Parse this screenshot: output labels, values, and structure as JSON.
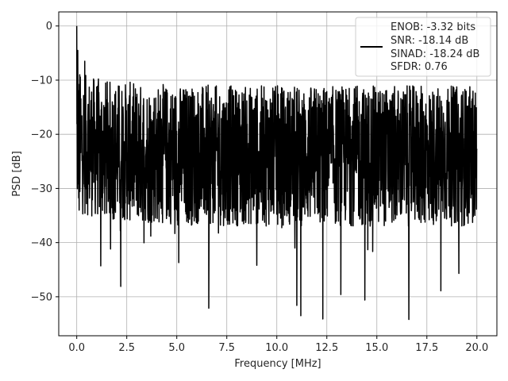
{
  "chart_data": {
    "type": "line",
    "title": "",
    "xlabel": "Frequency [MHz]",
    "ylabel": "PSD [dB]",
    "xlim": [
      -0.9,
      21.0
    ],
    "ylim": [
      -57.2,
      2.6
    ],
    "x_ticks": [
      0.0,
      2.5,
      5.0,
      7.5,
      10.0,
      12.5,
      15.0,
      17.5,
      20.0
    ],
    "x_tick_labels": [
      "0.0",
      "2.5",
      "5.0",
      "7.5",
      "10.0",
      "12.5",
      "15.0",
      "17.5",
      "20.0"
    ],
    "y_ticks": [
      0,
      -10,
      -20,
      -30,
      -40,
      -50
    ],
    "y_tick_labels": [
      "0",
      "−10",
      "−20",
      "−30",
      "−40",
      "−50"
    ],
    "grid": true,
    "legend_position": "top-right",
    "series": [
      {
        "color": "#000000",
        "x_range": [
          0.0,
          20.0
        ],
        "num_points": 2048,
        "approx_envelope": {
          "upper": -12,
          "lower": -38,
          "center": -24
        },
        "peaks": [
          {
            "x": 0.0,
            "y": 0.0
          },
          {
            "x": 0.05,
            "y": -4.5
          },
          {
            "x": 0.15,
            "y": -9.0
          },
          {
            "x": 0.4,
            "y": -6.5
          }
        ],
        "dips": [
          {
            "x": 0.12,
            "y": -34.0
          },
          {
            "x": 1.2,
            "y": -44.3
          },
          {
            "x": 2.2,
            "y": -48.1
          },
          {
            "x": 3.7,
            "y": -38.8
          },
          {
            "x": 5.1,
            "y": -43.7
          },
          {
            "x": 6.6,
            "y": -52.1
          },
          {
            "x": 9.0,
            "y": -44.2
          },
          {
            "x": 11.0,
            "y": -51.6
          },
          {
            "x": 11.2,
            "y": -53.5
          },
          {
            "x": 12.3,
            "y": -54.1
          },
          {
            "x": 13.2,
            "y": -49.6
          },
          {
            "x": 14.4,
            "y": -50.6
          },
          {
            "x": 16.6,
            "y": -54.2
          },
          {
            "x": 18.2,
            "y": -48.9
          },
          {
            "x": 19.1,
            "y": -45.7
          }
        ]
      }
    ],
    "legend": {
      "lines": [
        "ENOB: -3.32 bits",
        "SNR: -18.14 dB",
        "SINAD: -18.24 dB",
        "SFDR: 0.76"
      ]
    }
  }
}
